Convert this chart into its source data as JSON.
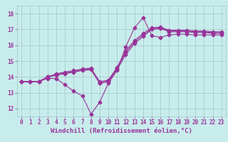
{
  "title": "",
  "xlabel": "Windchill (Refroidissement éolien,°C)",
  "ylabel": "",
  "background_color": "#c8ecec",
  "grid_color": "#a0c8c8",
  "line_color": "#993399",
  "xlim": [
    -0.5,
    23.5
  ],
  "ylim": [
    11.5,
    18.5
  ],
  "xticks": [
    0,
    1,
    2,
    3,
    4,
    5,
    6,
    7,
    8,
    9,
    10,
    11,
    12,
    13,
    14,
    15,
    16,
    17,
    18,
    19,
    20,
    21,
    22,
    23
  ],
  "yticks": [
    12,
    13,
    14,
    15,
    16,
    17,
    18
  ],
  "lines": [
    {
      "x": [
        0,
        1,
        2,
        3,
        4,
        5,
        6,
        7,
        8,
        9,
        10,
        11,
        12,
        13,
        14,
        15,
        16,
        17,
        18,
        19,
        20,
        21,
        22,
        23
      ],
      "y": [
        13.7,
        13.7,
        13.7,
        13.9,
        13.9,
        13.5,
        13.1,
        12.8,
        11.65,
        12.4,
        13.6,
        14.4,
        15.9,
        17.1,
        17.75,
        16.6,
        16.5,
        16.65,
        16.7,
        16.7,
        16.65,
        16.65,
        16.65,
        16.65
      ]
    },
    {
      "x": [
        0,
        1,
        2,
        3,
        4,
        5,
        6,
        7,
        8,
        9,
        10,
        11,
        12,
        13,
        14,
        15,
        16,
        17,
        18,
        19,
        20,
        21,
        22,
        23
      ],
      "y": [
        13.7,
        13.7,
        13.7,
        14.0,
        14.1,
        14.2,
        14.3,
        14.4,
        14.45,
        13.6,
        13.7,
        14.45,
        15.4,
        16.1,
        16.55,
        17.0,
        17.05,
        16.85,
        16.85,
        16.85,
        16.8,
        16.8,
        16.75,
        16.75
      ]
    },
    {
      "x": [
        0,
        1,
        2,
        3,
        4,
        5,
        6,
        7,
        8,
        9,
        10,
        11,
        12,
        13,
        14,
        15,
        16,
        17,
        18,
        19,
        20,
        21,
        22,
        23
      ],
      "y": [
        13.7,
        13.7,
        13.7,
        14.0,
        14.15,
        14.25,
        14.35,
        14.45,
        14.5,
        13.6,
        13.75,
        14.55,
        15.55,
        16.2,
        16.65,
        17.05,
        17.1,
        16.9,
        16.9,
        16.9,
        16.85,
        16.85,
        16.8,
        16.8
      ]
    },
    {
      "x": [
        0,
        1,
        2,
        3,
        4,
        5,
        6,
        7,
        8,
        9,
        10,
        11,
        12,
        13,
        14,
        15,
        16,
        17,
        18,
        19,
        20,
        21,
        22,
        23
      ],
      "y": [
        13.7,
        13.7,
        13.7,
        14.0,
        14.2,
        14.3,
        14.4,
        14.5,
        14.55,
        13.7,
        13.8,
        14.6,
        15.65,
        16.3,
        16.75,
        17.1,
        17.15,
        16.95,
        16.95,
        16.95,
        16.9,
        16.9,
        16.85,
        16.85
      ]
    }
  ],
  "marker": "D",
  "markersize": 2.5,
  "linewidth": 0.8,
  "tick_fontsize": 5.5,
  "xlabel_fontsize": 6.5
}
